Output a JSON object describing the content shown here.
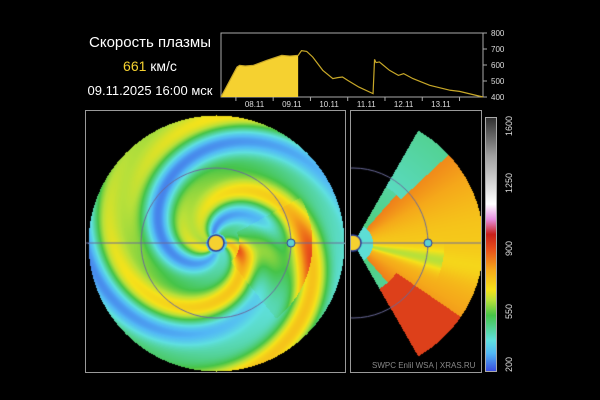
{
  "header": {
    "title": "Скорость плазмы",
    "speed_value": "661",
    "speed_unit": " км/с",
    "datetime": "09.11.2025 16:00 мск"
  },
  "chart_data": {
    "type": "area",
    "xlabel": "",
    "ylabel": "",
    "x_unit": "day of November 2025",
    "xlim": [
      7.6,
      14.63
    ],
    "ylim": [
      400,
      800
    ],
    "yticks": [
      400,
      500,
      600,
      700,
      800
    ],
    "xtick_labels": [
      "08.11",
      "09.11",
      "10.11",
      "11.11",
      "12.11",
      "13.11"
    ],
    "filled_until": 9.67,
    "fill_color": "#f5d130",
    "line_color": "#c8a828",
    "points": [
      [
        7.6,
        400
      ],
      [
        8.03,
        587
      ],
      [
        8.1,
        598
      ],
      [
        8.25,
        594
      ],
      [
        8.47,
        598
      ],
      [
        8.83,
        629
      ],
      [
        9.23,
        660
      ],
      [
        9.45,
        656
      ],
      [
        9.67,
        660
      ],
      [
        9.76,
        690
      ],
      [
        9.9,
        685
      ],
      [
        10.06,
        650
      ],
      [
        10.33,
        567
      ],
      [
        10.6,
        515
      ],
      [
        10.73,
        521
      ],
      [
        10.86,
        525
      ],
      [
        11.0,
        504
      ],
      [
        11.3,
        462
      ],
      [
        11.68,
        421
      ],
      [
        11.72,
        635
      ],
      [
        11.76,
        615
      ],
      [
        11.85,
        619
      ],
      [
        12.12,
        567
      ],
      [
        12.36,
        535
      ],
      [
        12.5,
        546
      ],
      [
        12.75,
        515
      ],
      [
        13.2,
        473
      ],
      [
        13.75,
        442
      ],
      [
        14.0,
        435
      ],
      [
        14.63,
        400
      ]
    ]
  },
  "colorbar": {
    "ticks": [
      "200",
      "550",
      "900",
      "1250",
      "1600"
    ],
    "range": [
      200,
      1600
    ]
  },
  "credit": "SWPC Enlil WSA  |  XRAS.RU",
  "colors": {
    "sun": "#f5d130",
    "earth": "#5fd0d0",
    "orbit": "#6a6a9a"
  }
}
